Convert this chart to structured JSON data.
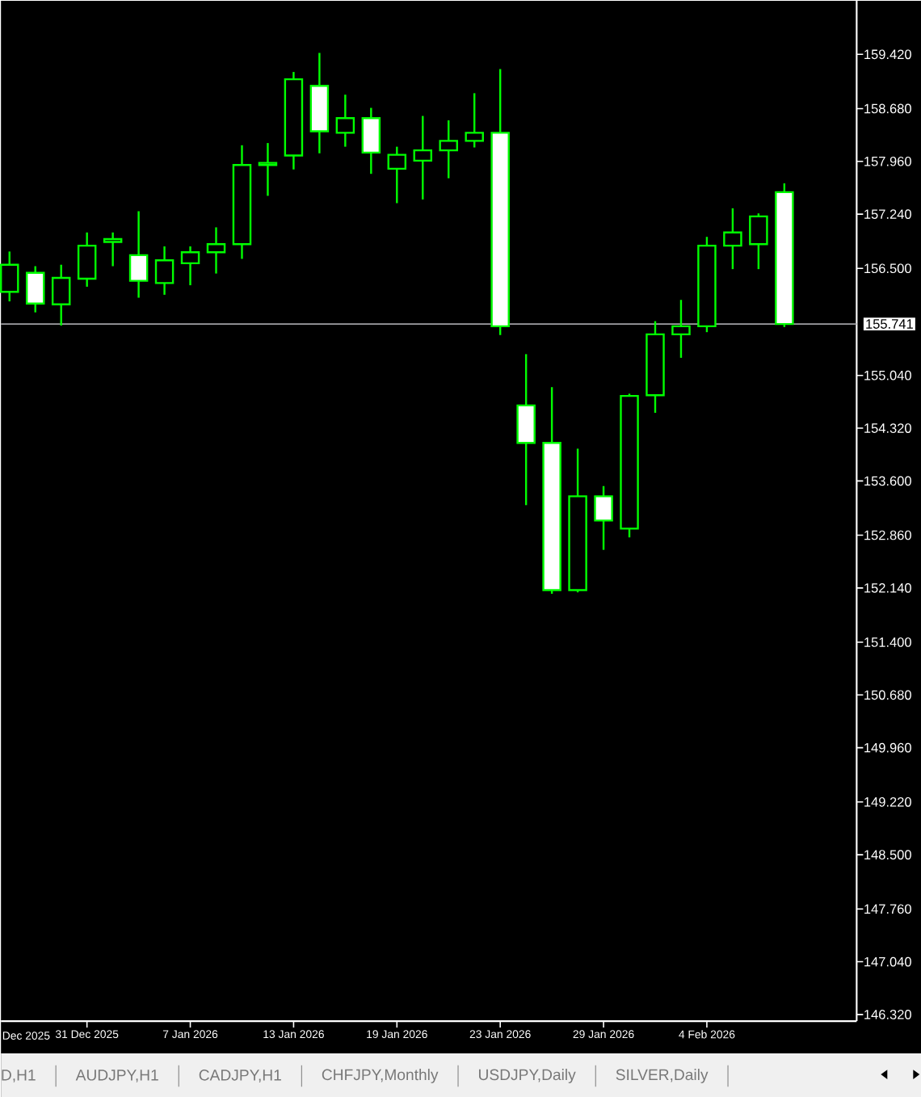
{
  "chart_data": {
    "type": "candlestick",
    "color": "#00ff00",
    "categories": [
      null,
      null,
      null,
      "31 Dec 2025",
      null,
      null,
      null,
      "7 Jan 2026",
      null,
      null,
      null,
      "13 Jan 2026",
      null,
      null,
      null,
      "19 Jan 2026",
      null,
      null,
      null,
      "23 Jan 2026",
      null,
      null,
      null,
      "29 Jan 2026",
      null,
      null,
      null,
      "4 Feb 2026",
      null,
      null,
      null
    ],
    "ohlc": [
      [
        156.18,
        156.73,
        156.05,
        156.55
      ],
      [
        156.44,
        156.53,
        155.9,
        156.02
      ],
      [
        156.01,
        156.55,
        155.72,
        156.37
      ],
      [
        156.36,
        156.99,
        156.25,
        156.81
      ],
      [
        156.86,
        156.99,
        156.53,
        156.9
      ],
      [
        156.68,
        157.28,
        156.1,
        156.33
      ],
      [
        156.3,
        156.8,
        156.14,
        156.61
      ],
      [
        156.57,
        156.8,
        156.27,
        156.72
      ],
      [
        156.72,
        157.06,
        156.43,
        156.83
      ],
      [
        156.83,
        158.18,
        156.63,
        157.91
      ],
      [
        157.91,
        158.21,
        157.49,
        157.94
      ],
      [
        158.04,
        159.18,
        157.85,
        159.08
      ],
      [
        158.99,
        159.44,
        158.07,
        158.37
      ],
      [
        158.35,
        158.87,
        158.16,
        158.55
      ],
      [
        158.55,
        158.69,
        157.79,
        158.08
      ],
      [
        157.86,
        158.16,
        157.39,
        158.05
      ],
      [
        157.97,
        158.58,
        157.44,
        158.11
      ],
      [
        158.11,
        158.52,
        157.73,
        158.24
      ],
      [
        158.24,
        158.89,
        158.15,
        158.35
      ],
      [
        158.35,
        159.22,
        155.59,
        155.71
      ],
      [
        154.63,
        155.33,
        153.27,
        154.12
      ],
      [
        154.12,
        154.88,
        152.06,
        152.11
      ],
      [
        152.11,
        154.04,
        152.08,
        153.39
      ],
      [
        153.39,
        153.53,
        152.66,
        153.06
      ],
      [
        152.95,
        154.79,
        152.83,
        154.76
      ],
      [
        154.77,
        155.78,
        154.53,
        155.6
      ],
      [
        155.6,
        156.07,
        155.28,
        155.71
      ],
      [
        155.71,
        156.93,
        155.63,
        156.81
      ],
      [
        156.81,
        157.32,
        156.49,
        156.99
      ],
      [
        156.83,
        157.25,
        156.49,
        157.21
      ],
      [
        157.54,
        157.66,
        155.7,
        155.741
      ]
    ],
    "ylim": [
      146.23,
      160.15
    ],
    "yticks": [
      {
        "value": 159.42,
        "label": "159.420"
      },
      {
        "value": 158.68,
        "label": "158.680"
      },
      {
        "value": 157.96,
        "label": "157.960"
      },
      {
        "value": 157.24,
        "label": "157.240"
      },
      {
        "value": 156.5,
        "label": "156.500"
      },
      {
        "value": 155.04,
        "label": "155.040"
      },
      {
        "value": 154.32,
        "label": "154.320"
      },
      {
        "value": 153.6,
        "label": "153.600"
      },
      {
        "value": 152.86,
        "label": "152.860"
      },
      {
        "value": 152.14,
        "label": "152.140"
      },
      {
        "value": 151.4,
        "label": "151.400"
      },
      {
        "value": 150.68,
        "label": "150.680"
      },
      {
        "value": 149.96,
        "label": "149.960"
      },
      {
        "value": 149.22,
        "label": "149.220"
      },
      {
        "value": 148.5,
        "label": "148.500"
      },
      {
        "value": 147.76,
        "label": "147.760"
      },
      {
        "value": 147.04,
        "label": "147.040"
      },
      {
        "value": 146.32,
        "label": "146.320"
      }
    ],
    "ref_lines": [
      {
        "axis": "y",
        "value": 155.741,
        "label": "155.741",
        "color": "#a0a0a4"
      }
    ],
    "annotations": [
      "Dec 2025",
      "D,H1",
      "AUDJPY,H1",
      "CADJPY,H1",
      "CHFJPY,Monthly",
      "USDJPY,Daily",
      "SILVER,Daily"
    ]
  }
}
